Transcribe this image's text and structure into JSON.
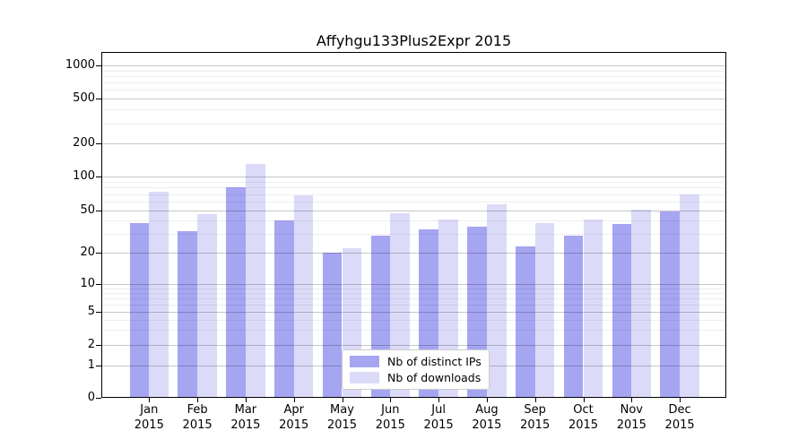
{
  "title": "Affyhgu133Plus2Expr 2015",
  "colors": {
    "distinct_ips": "#a5a5f2",
    "downloads": "#dbdbf9",
    "axis": "#000000",
    "grid_major": "rgba(0,0,0,0.22)",
    "grid_minor": "rgba(0,0,0,0.065)",
    "background": "#ffffff"
  },
  "legend": {
    "items": [
      {
        "label": "Nb of distinct IPs",
        "color": "#a5a5f2"
      },
      {
        "label": "Nb of downloads",
        "color": "#dbdbf9"
      }
    ],
    "position": "lower center"
  },
  "chart_data": {
    "type": "bar",
    "title": "Affyhgu133Plus2Expr 2015",
    "categories": [
      "Jan 2015",
      "Feb 2015",
      "Mar 2015",
      "Apr 2015",
      "May 2015",
      "Jun 2015",
      "Jul 2015",
      "Aug 2015",
      "Sep 2015",
      "Oct 2015",
      "Nov 2015",
      "Dec 2015"
    ],
    "series": [
      {
        "name": "Nb of distinct IPs",
        "color": "#a5a5f2",
        "values": [
          38,
          32,
          80,
          40,
          20,
          29,
          33,
          35,
          23,
          29,
          37,
          49
        ]
      },
      {
        "name": "Nb of downloads",
        "color": "#dbdbf9",
        "values": [
          73,
          46,
          130,
          68,
          22,
          47,
          41,
          57,
          38,
          41,
          51,
          69
        ]
      }
    ],
    "xlabel": "",
    "ylabel": "",
    "yscale": "log1p",
    "yticks": [
      0,
      1,
      2,
      5,
      10,
      20,
      50,
      100,
      200,
      500,
      1000
    ],
    "ylim": [
      0,
      1300
    ],
    "grid": "both",
    "legend_position": "lower center"
  }
}
